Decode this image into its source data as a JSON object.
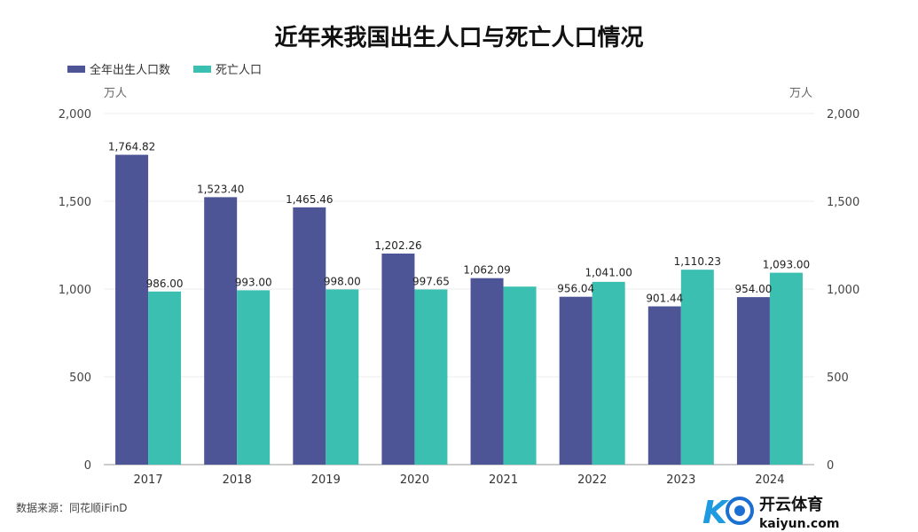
{
  "chart_data": {
    "type": "bar",
    "title": "近年来我国出生人口与死亡人口情况",
    "categories": [
      "2017",
      "2018",
      "2019",
      "2020",
      "2021",
      "2022",
      "2023",
      "2024"
    ],
    "series": [
      {
        "name": "全年出生人口数",
        "color": "#4e5597",
        "values": [
          1764.82,
          1523.4,
          1465.46,
          1202.26,
          1062.09,
          956.04,
          901.44,
          954.0
        ],
        "labels": [
          "1,764.82",
          "1,523.40",
          "1,465.46",
          "1,202.26",
          "1,062.09",
          "956.04",
          "901.44",
          "954.00"
        ]
      },
      {
        "name": "死亡人口",
        "color": "#3bbfb0",
        "values": [
          986.0,
          993.0,
          998.0,
          997.65,
          1014,
          1041.0,
          1110.23,
          1093.0
        ],
        "labels": [
          "986.00",
          "993.00",
          "998.00",
          "997.65",
          null,
          "1,041.00",
          "1,110.23",
          "1,093.00"
        ]
      }
    ],
    "ylabel_left": "万人",
    "ylabel_right": "万人",
    "ylim": [
      0,
      2000
    ],
    "yticks": [
      "0",
      "500",
      "1,000",
      "1,500",
      "2,000"
    ],
    "grid": true,
    "legend": "top-left"
  },
  "source": "数据来源：同花顺iFinD",
  "watermark": {
    "title": "开云体育",
    "url": "kaiyun.com"
  }
}
